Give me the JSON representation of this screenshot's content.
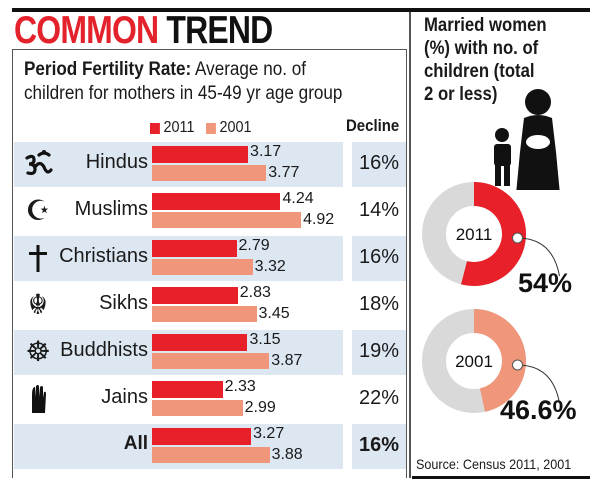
{
  "header": {
    "title_part1": "COMMON",
    "title_part2": "TREND"
  },
  "chart_data": [
    {
      "type": "bar",
      "orientation": "horizontal",
      "title_bold": "Period Fertility Rate:",
      "title": "Average no. of children for mothers in 45-49 yr age group",
      "categories": [
        "Hindus",
        "Muslims",
        "Christians",
        "Sikhs",
        "Buddhists",
        "Jains",
        "All"
      ],
      "category_icons": [
        "om-icon",
        "crescent-star-icon",
        "cross-icon",
        "khanda-icon",
        "dharma-wheel-icon",
        "jain-hand-icon",
        ""
      ],
      "series": [
        {
          "name": "2011",
          "color": "#e8202a",
          "values": [
            3.17,
            4.24,
            2.79,
            2.83,
            3.15,
            2.33,
            3.27
          ],
          "labels": [
            "3.17",
            "4.24",
            "2.79",
            "2.83",
            "3.15",
            "2.33",
            "3.27"
          ]
        },
        {
          "name": "2001",
          "color": "#f0967a",
          "values": [
            3.77,
            4.92,
            3.32,
            3.45,
            3.87,
            2.99,
            3.88
          ],
          "labels": [
            "3.77",
            "4.92",
            "3.32",
            "3.45",
            "3.87",
            "2.99",
            "3.88"
          ]
        }
      ],
      "decline_header": "Decline",
      "decline": [
        "16%",
        "14%",
        "16%",
        "18%",
        "19%",
        "22%",
        "16%"
      ],
      "band_color": "#dde7f2"
    },
    {
      "type": "pie",
      "title": "Married women (%) with no. of children (total 2 or less)",
      "title_lines": [
        "Married women",
        "(%) with no. of",
        "children (total",
        "2 or less)"
      ],
      "donuts": [
        {
          "label": "2011",
          "value": 54,
          "value_label": "54%",
          "color": "#e8202a"
        },
        {
          "label": "2001",
          "value": 46.6,
          "value_label": "46.6%",
          "color": "#f0967a"
        }
      ],
      "rest_color": "#d9d9d9",
      "source": "Source: Census 2011, 2001"
    }
  ]
}
